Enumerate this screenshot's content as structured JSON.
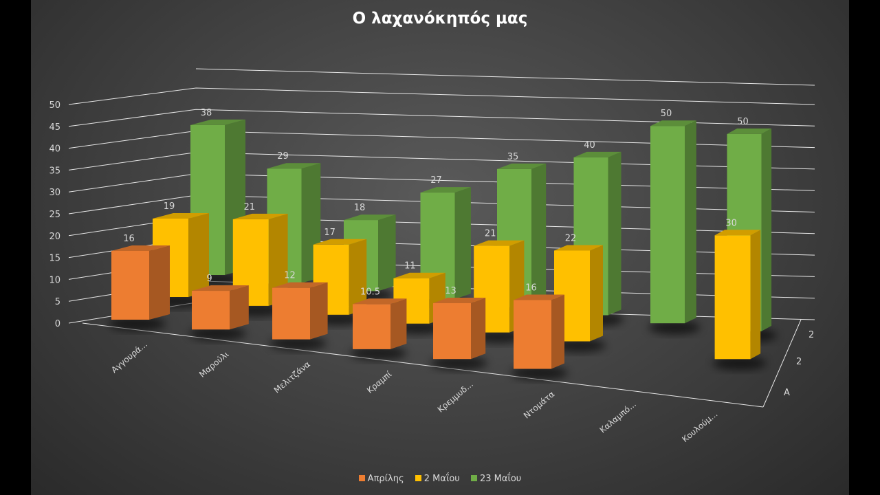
{
  "chart_data": {
    "type": "bar",
    "subtype": "3d-column",
    "title": "Ο λαχανόκηπός μας",
    "categories": [
      "Αγγουρά...",
      "Μαρούλι",
      "Μελιτζάνα",
      "Κραμπί",
      "Κρεμμυδ...",
      "Ντομάτα",
      "Καλαμπό...",
      "Κουλούμ..."
    ],
    "series": [
      {
        "name": "Απρίλης",
        "color": "#ED7D31",
        "values": [
          16,
          9,
          12,
          10.5,
          13,
          16,
          null,
          null
        ]
      },
      {
        "name": "2 Μαΐου",
        "color": "#FFC000",
        "values": [
          19,
          21,
          17,
          11,
          21,
          22,
          null,
          30
        ]
      },
      {
        "name": "23 Μαΐου",
        "color": "#70AD47",
        "values": [
          38,
          29,
          18,
          27,
          35,
          40,
          50,
          50
        ]
      }
    ],
    "ylim": [
      0,
      50
    ],
    "y_ticks": [
      "0",
      "5",
      "10",
      "15",
      "20",
      "25",
      "30",
      "35",
      "40",
      "45",
      "50"
    ],
    "depth_tick_labels": [
      "Α",
      "2",
      "2"
    ],
    "grid": true,
    "data_labels": true,
    "legend_position": "bottom"
  }
}
